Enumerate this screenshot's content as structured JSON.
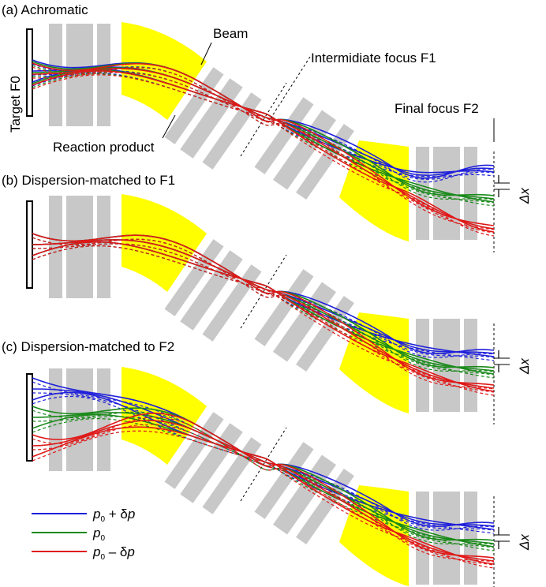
{
  "colors": {
    "magnet": "#ffff00",
    "quad": "#c8c8c8",
    "series_plus": "#1f1fdc",
    "series_zero": "#1a8a1a",
    "series_minus": "#e01818"
  },
  "panels": [
    {
      "label": "(a) Achromatic"
    },
    {
      "label": "(b) Dispersion-matched to F1"
    },
    {
      "label": "(c) Dispersion-matched to F2"
    }
  ],
  "annotations": {
    "target": "Target F0",
    "beam": "Beam",
    "intermediate": "Intermidiate focus F1",
    "final_focus": "Final focus F2",
    "reaction": "Reaction product",
    "delta_x": "Δx"
  },
  "legend": [
    {
      "base": "p",
      "sub": "0",
      "rest": " + δ",
      "tail": "p",
      "color_key": "series_plus"
    },
    {
      "base": "p",
      "sub": "0",
      "rest": "",
      "tail": "",
      "color_key": "series_zero"
    },
    {
      "base": "p",
      "sub": "0",
      "rest": " – δ",
      "tail": "p",
      "color_key": "series_minus"
    }
  ]
}
